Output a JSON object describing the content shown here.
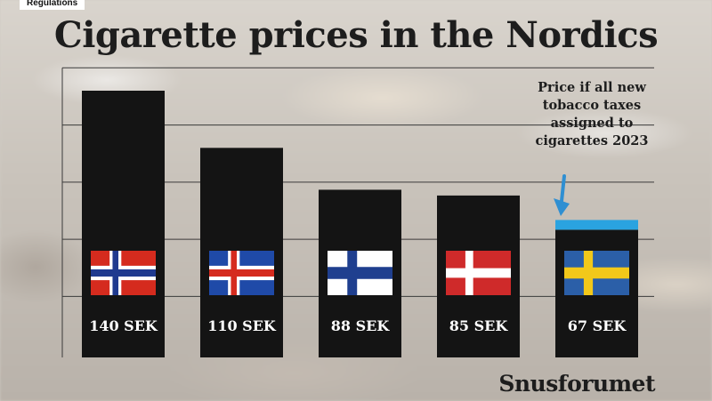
{
  "header": {
    "tag": "Regulations",
    "title": "Cigarette prices in the Nordics"
  },
  "annotation": "Price if all new tobacco taxes assigned to cigarettes 2023",
  "source": "Snusforumet",
  "colors": {
    "bar": "#141414",
    "highlight": "#2aa3e0",
    "arrow": "#2f8fd2",
    "grid": "#3a3a3a",
    "label": "#ffffff"
  },
  "chart_data": {
    "type": "bar",
    "title": "Cigarette prices in the Nordics",
    "xlabel": "",
    "ylabel": "",
    "unit": "SEK",
    "ylim": [
      0,
      150
    ],
    "grid": true,
    "categories": [
      "Norway",
      "Iceland",
      "Finland",
      "Denmark",
      "Sweden"
    ],
    "values": [
      140,
      110,
      88,
      85,
      67
    ],
    "labels": [
      "140 SEK",
      "110 SEK",
      "88 SEK",
      "85 SEK",
      "67 SEK"
    ],
    "flags": [
      "norway-flag",
      "iceland-flag",
      "finland-flag",
      "denmark-flag",
      "sweden-flag"
    ],
    "highlight": "Sweden"
  }
}
